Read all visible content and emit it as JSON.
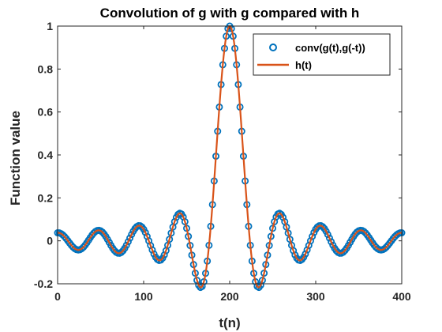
{
  "chart_data": {
    "type": "line",
    "title": "Convolution of g with g compared with h",
    "xlabel": "t(n)",
    "ylabel": "Function value",
    "xlim": [
      0,
      400
    ],
    "ylim": [
      -0.2,
      1
    ],
    "xticks": [
      0,
      100,
      200,
      300,
      400
    ],
    "yticks": [
      -0.2,
      0,
      0.2,
      0.4,
      0.6,
      0.8,
      1
    ],
    "xtick_labels": [
      "0",
      "100",
      "200",
      "300",
      "400"
    ],
    "ytick_labels": [
      "-0.2",
      "0",
      "0.2",
      "0.4",
      "0.6",
      "0.8",
      "1"
    ],
    "grid": false,
    "legend_position": "top-right",
    "series": [
      {
        "name": "conv(g(t),g(-t))",
        "style": "markers",
        "marker": "circle",
        "color": "#0072BD",
        "function": "sinc",
        "center": 200,
        "width": 23.5,
        "x_start": 0,
        "x_end": 400,
        "x_step": 2
      },
      {
        "name": "h(t)",
        "style": "line",
        "color": "#D95319",
        "function": "sinc",
        "center": 200,
        "width": 23.5,
        "x_start": 0,
        "x_end": 400,
        "x_step": 1
      }
    ],
    "notable_points": [
      {
        "x": 200,
        "y": 1
      },
      {
        "x": 172,
        "y": -0.18
      },
      {
        "x": 228,
        "y": -0.18
      },
      {
        "x": 152,
        "y": 0.075
      },
      {
        "x": 248,
        "y": 0.075
      }
    ]
  }
}
